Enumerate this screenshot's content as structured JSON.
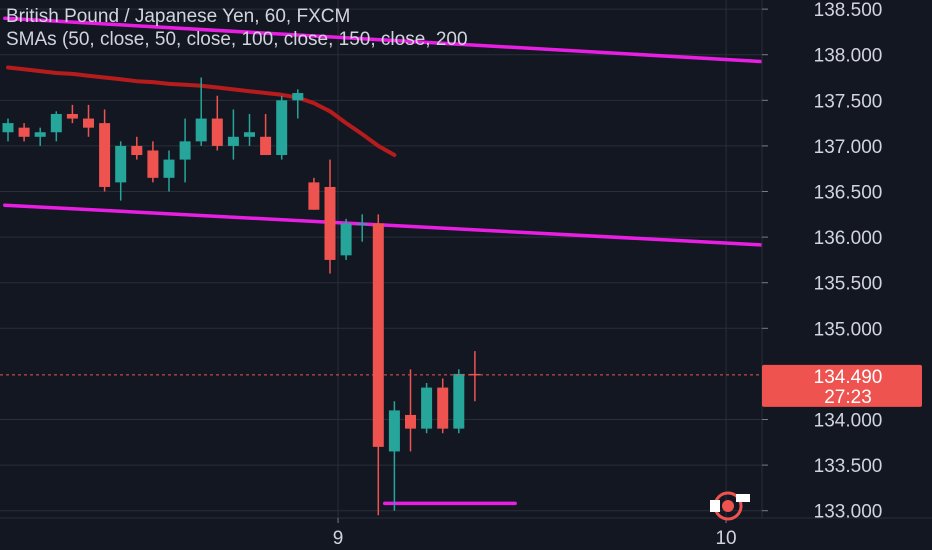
{
  "header": {
    "title": "British Pound / Japanese Yen, 60, FXCM",
    "indicator": "SMAs (50, close, 50, close, 100, close, 150, close, 200"
  },
  "price_tag": {
    "value": "134.490",
    "countdown": "27:23"
  },
  "colors": {
    "background": "#131722",
    "up": "#26a69a",
    "down": "#ef5350",
    "trendline": "#e91ee3",
    "sma": "#b71c1c",
    "grid": "#2a2e39",
    "text": "#d1d4dc"
  },
  "chart_data": {
    "type": "candlestick",
    "symbol": "GBPJPY",
    "timeframe": "60",
    "y_ticks": [
      "138.500",
      "138.000",
      "137.500",
      "137.000",
      "136.500",
      "136.000",
      "135.500",
      "135.000",
      "134.000",
      "133.500",
      "133.000"
    ],
    "x_ticks": [
      {
        "label": "9",
        "bar": 20.5
      },
      {
        "label": "10",
        "bar": 44.6
      }
    ],
    "ylim": [
      132.92,
      138.6
    ],
    "candles": [
      {
        "o": 137.15,
        "h": 137.3,
        "l": 137.05,
        "c": 137.25
      },
      {
        "o": 137.2,
        "h": 137.25,
        "l": 137.05,
        "c": 137.1
      },
      {
        "o": 137.1,
        "h": 137.2,
        "l": 137.0,
        "c": 137.15
      },
      {
        "o": 137.15,
        "h": 137.38,
        "l": 137.05,
        "c": 137.35
      },
      {
        "o": 137.35,
        "h": 137.45,
        "l": 137.25,
        "c": 137.3
      },
      {
        "o": 137.3,
        "h": 137.45,
        "l": 137.1,
        "c": 137.2
      },
      {
        "o": 137.25,
        "h": 137.4,
        "l": 136.5,
        "c": 136.55
      },
      {
        "o": 136.6,
        "h": 137.05,
        "l": 136.4,
        "c": 137.0
      },
      {
        "o": 137.0,
        "h": 137.1,
        "l": 136.85,
        "c": 136.9
      },
      {
        "o": 136.95,
        "h": 137.05,
        "l": 136.6,
        "c": 136.65
      },
      {
        "o": 136.65,
        "h": 136.95,
        "l": 136.5,
        "c": 136.85
      },
      {
        "o": 136.85,
        "h": 137.3,
        "l": 136.6,
        "c": 137.05
      },
      {
        "o": 137.05,
        "h": 137.75,
        "l": 137.0,
        "c": 137.3
      },
      {
        "o": 137.3,
        "h": 137.55,
        "l": 136.95,
        "c": 137.0
      },
      {
        "o": 137.0,
        "h": 137.4,
        "l": 136.85,
        "c": 137.1
      },
      {
        "o": 137.1,
        "h": 137.35,
        "l": 137.0,
        "c": 137.15
      },
      {
        "o": 137.1,
        "h": 137.35,
        "l": 136.9,
        "c": 136.9
      },
      {
        "o": 136.9,
        "h": 137.55,
        "l": 136.85,
        "c": 137.5
      },
      {
        "o": 137.5,
        "h": 137.62,
        "l": 137.3,
        "c": 137.58
      },
      {
        "o": 136.6,
        "h": 136.65,
        "l": 136.3,
        "c": 136.3
      },
      {
        "o": 136.55,
        "h": 136.85,
        "l": 135.6,
        "c": 135.75
      },
      {
        "o": 135.8,
        "h": 136.2,
        "l": 135.75,
        "c": 136.15
      },
      {
        "o": 136.15,
        "h": 136.25,
        "l": 135.95,
        "c": 136.15
      },
      {
        "o": 136.15,
        "h": 136.25,
        "l": 132.95,
        "c": 133.7
      },
      {
        "o": 133.65,
        "h": 134.2,
        "l": 133.0,
        "c": 134.1
      },
      {
        "o": 134.05,
        "h": 134.55,
        "l": 133.65,
        "c": 133.9
      },
      {
        "o": 133.9,
        "h": 134.4,
        "l": 133.85,
        "c": 134.35
      },
      {
        "o": 134.35,
        "h": 134.45,
        "l": 133.85,
        "c": 133.9
      },
      {
        "o": 133.9,
        "h": 134.55,
        "l": 133.85,
        "c": 134.5
      },
      {
        "o": 134.5,
        "h": 134.75,
        "l": 134.2,
        "c": 134.49
      }
    ],
    "sma": [
      137.86,
      137.84,
      137.82,
      137.8,
      137.79,
      137.77,
      137.75,
      137.73,
      137.71,
      137.7,
      137.68,
      137.67,
      137.66,
      137.64,
      137.62,
      137.6,
      137.58,
      137.56,
      137.53,
      137.47,
      137.38,
      137.25,
      137.13,
      137.0,
      136.9
    ],
    "trendlines": [
      {
        "from": [
          -0.2,
          138.4
        ],
        "to": [
          47.3,
          137.92
        ]
      },
      {
        "from": [
          -0.2,
          136.35
        ],
        "to": [
          47.3,
          135.91
        ]
      },
      {
        "from": [
          23.4,
          133.08
        ],
        "to": [
          31.5,
          133.08
        ]
      }
    ],
    "last_price": 134.49,
    "grid": true
  }
}
